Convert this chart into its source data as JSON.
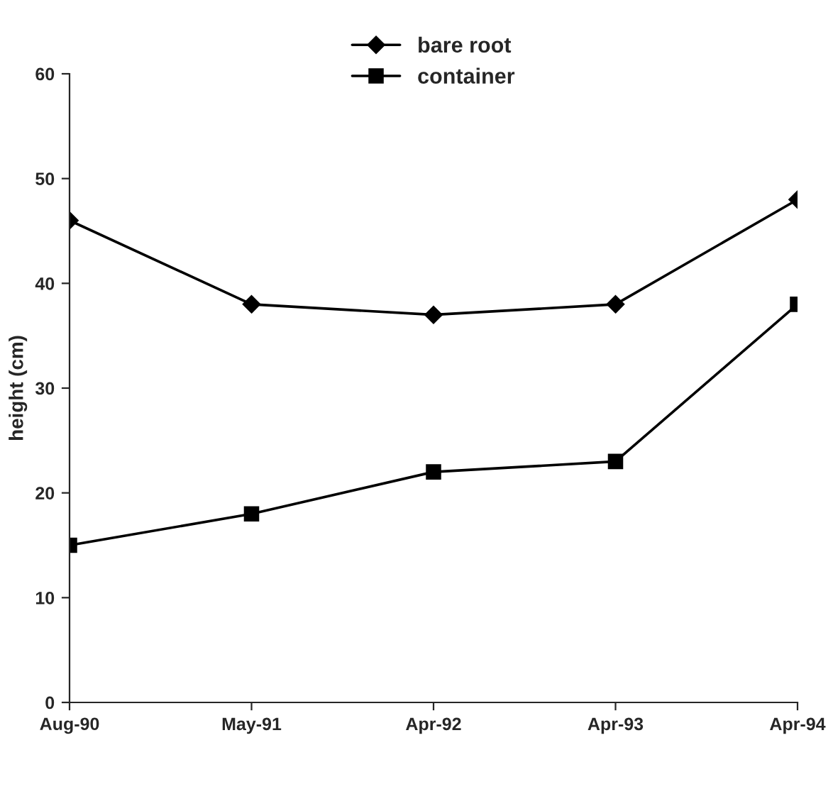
{
  "chart_data": {
    "type": "line",
    "ylabel": "height (cm)",
    "categories": [
      "Aug-90",
      "May-91",
      "Apr-92",
      "Apr-93",
      "Apr-94"
    ],
    "series": [
      {
        "name": "bare root",
        "color": "#000000",
        "marker": "diamond",
        "values": [
          46,
          38,
          37,
          38,
          48
        ]
      },
      {
        "name": "container",
        "color": "#000000",
        "marker": "square",
        "values": [
          15,
          18,
          22,
          23,
          38
        ]
      }
    ],
    "ylim": [
      0,
      60
    ],
    "yticks": [
      0,
      10,
      20,
      30,
      40,
      50,
      60
    ],
    "grid": false,
    "legend": "top",
    "line_style": "solid"
  }
}
